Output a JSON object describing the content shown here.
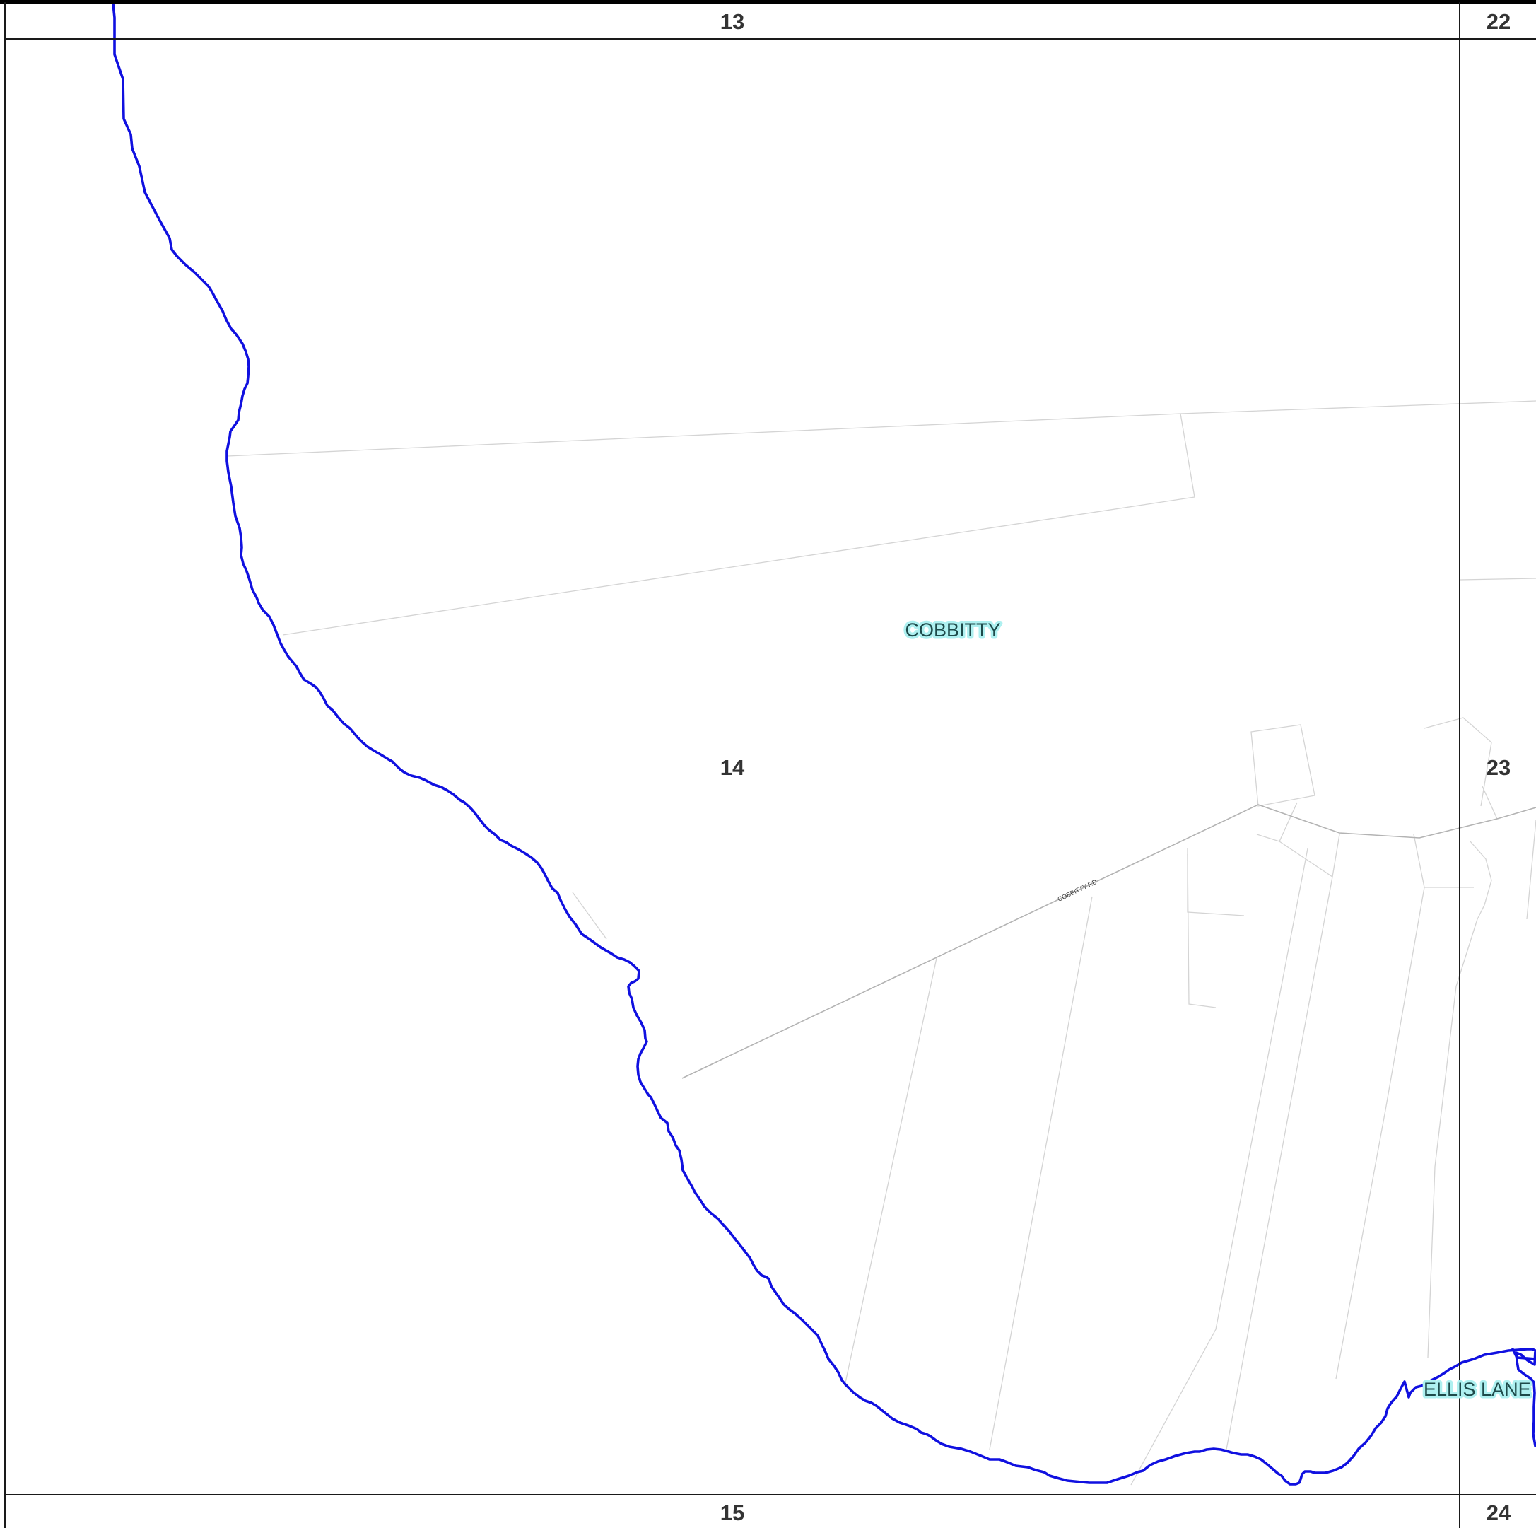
{
  "map": {
    "grid_labels": {
      "top_left": "13",
      "top_right": "22",
      "middle_left": "14",
      "middle_right": "23",
      "bottom_left": "15",
      "bottom_right": "24"
    },
    "suburbs": {
      "cobbitty": "COBBITTY",
      "ellis_lane": "ELLIS LANE"
    },
    "roads": {
      "cobbitty_rd": "COBBITTY RD"
    },
    "colors": {
      "boundary": "#1010e0",
      "grid": "#1a1a1a",
      "suburb_label_halo": "#aef0f0",
      "parcel_lines": "#d4d4d4"
    }
  }
}
